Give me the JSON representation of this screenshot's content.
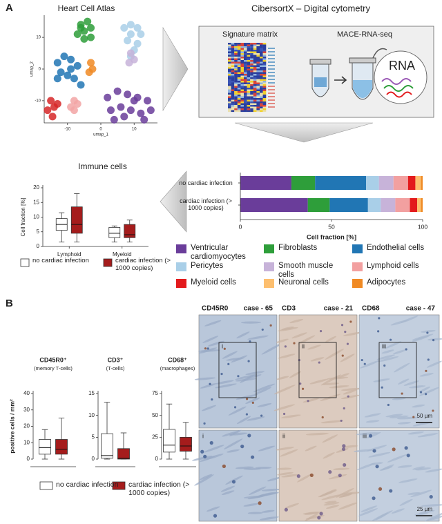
{
  "panel_labels": [
    "A",
    "B"
  ],
  "diagram": {
    "title": "CibersortX – Digital cytometry",
    "left_title": "Signature matrix",
    "right_title": "MACE-RNA-seq",
    "circle_text": "RNA"
  },
  "histology": {
    "stains": [
      {
        "marker": "CD45R0",
        "case": "case - 65",
        "inset": "i"
      },
      {
        "marker": "CD3",
        "case": "case - 21",
        "inset": "ii"
      },
      {
        "marker": "CD68",
        "case": "case - 47",
        "inset": "iii"
      }
    ],
    "scale_bars": [
      "50 µm",
      "25 µm"
    ]
  },
  "chart_data": [
    {
      "type": "scatter",
      "title": "Heart Cell Atlas",
      "xlabel": "umap_1",
      "ylabel": "umap_2",
      "xlim": [
        -17,
        17
      ],
      "ylim": [
        -17,
        17
      ],
      "xticks": [
        -10,
        0,
        10
      ],
      "yticks": [
        -10,
        0,
        10
      ],
      "series": [
        {
          "color": "#2e9e3a",
          "x": [
            -6,
            -4,
            -3,
            -5,
            -7,
            -3,
            -5,
            -6
          ],
          "values": [
            14,
            15,
            13,
            12,
            11,
            10,
            9.5,
            13
          ]
        },
        {
          "color": "#a9cfe8",
          "x": [
            7,
            9,
            11,
            12,
            9,
            8,
            10,
            9,
            11
          ],
          "values": [
            13,
            14,
            13,
            11,
            11,
            9,
            6,
            4,
            8
          ]
        },
        {
          "color": "#c7b3d9",
          "x": [
            9,
            10,
            8.5
          ],
          "values": [
            5,
            3,
            2
          ]
        },
        {
          "color": "#2176b4",
          "x": [
            -13,
            -11,
            -9,
            -7,
            -12,
            -10,
            -8,
            -6,
            -9,
            -13
          ],
          "values": [
            2,
            4,
            3,
            1,
            -1,
            -2,
            -3,
            -5,
            0,
            -3
          ]
        },
        {
          "color": "#d62728",
          "x": [
            -15,
            -14,
            -16,
            -14.5,
            -13
          ],
          "values": [
            -10,
            -12,
            -13,
            -15,
            -11
          ]
        },
        {
          "color": "#f2a5a5",
          "x": [
            -8,
            -9,
            -7,
            -8
          ],
          "values": [
            -10,
            -12,
            -11,
            -13
          ]
        },
        {
          "color": "#6a3d9a",
          "x": [
            2,
            5,
            8,
            11,
            14,
            3,
            6,
            9,
            12,
            15,
            7,
            10,
            4,
            13
          ],
          "values": [
            -9,
            -7,
            -8,
            -9,
            -10,
            -13,
            -12,
            -13,
            -14,
            -13,
            -15,
            -10,
            -16,
            -16
          ]
        },
        {
          "color": "#f08a24",
          "x": [
            -3,
            -3.5,
            -2.5
          ],
          "values": [
            2,
            -1,
            0
          ]
        }
      ]
    },
    {
      "type": "box",
      "title": "Immune cells",
      "ylabel": "Cell fraction [%]",
      "ylim": [
        0,
        20
      ],
      "yticks": [
        0,
        5,
        10,
        15,
        20
      ],
      "categories": [
        "Lymphoid",
        "Myeloid"
      ],
      "series": [
        {
          "name": "no cardiac infection",
          "color": "#ffffff",
          "values": [
            {
              "min": 1.5,
              "q1": 5.5,
              "median": 7.5,
              "q3": 9.5,
              "max": 11.5
            },
            {
              "min": 1.5,
              "q1": 3,
              "median": 4.5,
              "q3": 6.5,
              "max": 7
            }
          ]
        },
        {
          "name": "cardiac infection (> 1000 copies)",
          "color": "#a51c1c",
          "values": [
            {
              "min": 1.5,
              "q1": 4.5,
              "median": 7.5,
              "q3": 13.5,
              "max": 18
            },
            {
              "min": 1.5,
              "q1": 3,
              "median": 4,
              "q3": 7.5,
              "max": 9
            }
          ]
        }
      ]
    },
    {
      "type": "bar",
      "orientation": "horizontal",
      "stacked": true,
      "xlabel": "Cell fraction [%]",
      "xlim": [
        0,
        100
      ],
      "xticks": [
        0,
        50,
        100
      ],
      "categories": [
        "no cardiac infection",
        "cardiac infection (> 1000 copies)"
      ],
      "series": [
        {
          "name": "Ventricular cardiomyocytes",
          "color": "#6a3d9a",
          "values": [
            28,
            37
          ]
        },
        {
          "name": "Fibroblasts",
          "color": "#2e9e3a",
          "values": [
            13,
            12
          ]
        },
        {
          "name": "Endothelial cells",
          "color": "#2176b4",
          "values": [
            28,
            21
          ]
        },
        {
          "name": "Pericytes",
          "color": "#a9cfe8",
          "values": [
            7,
            7
          ]
        },
        {
          "name": "Smooth muscle cells",
          "color": "#c7b3d9",
          "values": [
            8,
            8
          ]
        },
        {
          "name": "Lymphoid cells",
          "color": "#f2a0a0",
          "values": [
            8,
            8
          ]
        },
        {
          "name": "Myeloid cells",
          "color": "#e31a1c",
          "values": [
            4,
            4
          ]
        },
        {
          "name": "Neuronal cells",
          "color": "#fdbf6f",
          "values": [
            3,
            2
          ]
        },
        {
          "name": "Adipocytes",
          "color": "#f08a24",
          "values": [
            1,
            1
          ]
        }
      ]
    },
    {
      "type": "box",
      "title": "CD45R0⁺",
      "subtitle": "(memory T-cells)",
      "ylabel": "positive cells / mm²",
      "ylim": [
        0,
        40
      ],
      "yticks": [
        0,
        10,
        20,
        30,
        40
      ],
      "series": [
        {
          "name": "no cardiac infection",
          "color": "#ffffff",
          "values": [
            {
              "min": 0,
              "q1": 3,
              "median": 7,
              "q3": 12,
              "max": 18
            }
          ]
        },
        {
          "name": "cardiac infection (> 1000 copies)",
          "color": "#a51c1c",
          "values": [
            {
              "min": 0,
              "q1": 3,
              "median": 6,
              "q3": 12,
              "max": 25
            }
          ]
        }
      ]
    },
    {
      "type": "box",
      "title": "CD3⁺",
      "subtitle": "(T-cells)",
      "ylim": [
        0,
        15
      ],
      "yticks": [
        0,
        5,
        10,
        15
      ],
      "series": [
        {
          "color": "#ffffff",
          "values": [
            {
              "min": 0,
              "q1": 0.2,
              "median": 0.8,
              "q3": 5.8,
              "max": 13
            }
          ]
        },
        {
          "color": "#a51c1c",
          "values": [
            {
              "min": 0,
              "q1": 0,
              "median": 0.2,
              "q3": 2.4,
              "max": 6
            }
          ]
        }
      ]
    },
    {
      "type": "box",
      "title": "CD68⁺",
      "subtitle": "(macrophages)",
      "ylim": [
        0,
        75
      ],
      "yticks": [
        0,
        25,
        50,
        75
      ],
      "series": [
        {
          "color": "#ffffff",
          "values": [
            {
              "min": 0,
              "q1": 8,
              "median": 16,
              "q3": 34,
              "max": 63
            }
          ]
        },
        {
          "color": "#a51c1c",
          "values": [
            {
              "min": 0,
              "q1": 9,
              "median": 15,
              "q3": 25,
              "max": 42
            }
          ]
        }
      ]
    }
  ]
}
